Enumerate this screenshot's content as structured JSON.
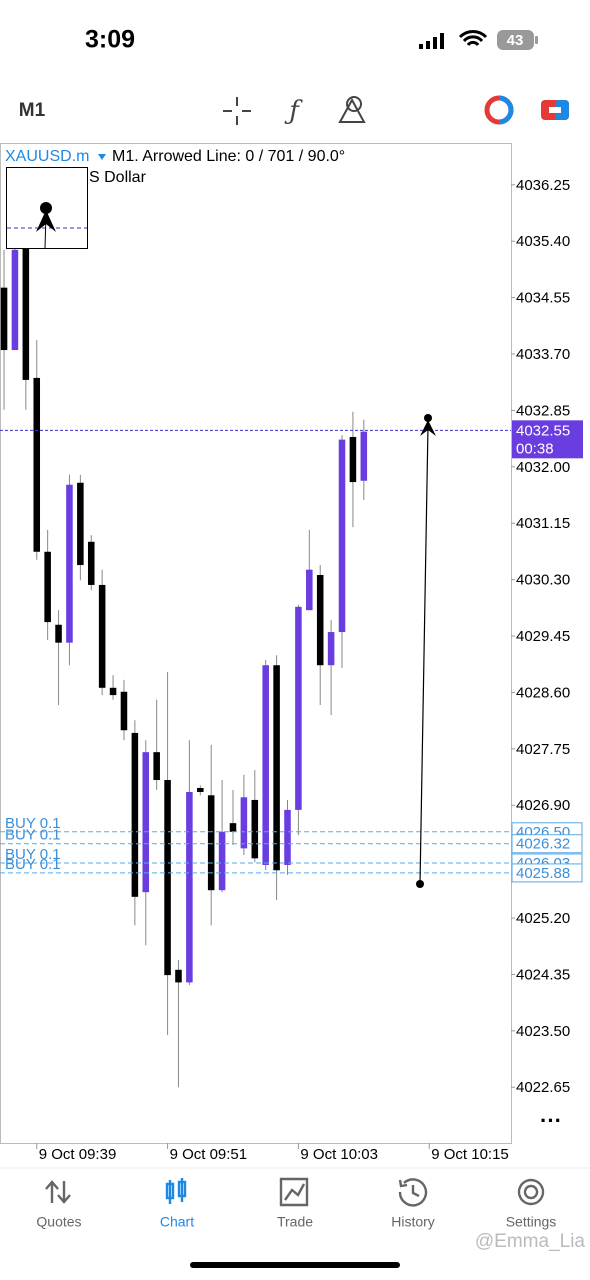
{
  "status_bar": {
    "time": "3:09",
    "battery": "43"
  },
  "toolbar": {
    "timeframe": "M1"
  },
  "chart_header": {
    "symbol": "XAUUSD.m",
    "info": "M1. Arrowed Line: 0 / 701 / 90.0°",
    "currency": "S Dollar"
  },
  "chart_data": {
    "type": "candlestick",
    "up_color": "#6a3de0",
    "down_color": "#000000",
    "ylim": [
      4021.81,
      4036.88
    ],
    "yticks": [
      4036.25,
      {
        "value": 4035.4,
        "label": "4035.40"
      },
      4034.55,
      {
        "value": 4033.7,
        "label": "4033.70"
      },
      4032.85,
      {
        "value": 4032,
        "label": "4032.00"
      },
      4031.15,
      {
        "value": 4030.3,
        "label": "4030.30"
      },
      4029.45,
      {
        "value": 4028.6,
        "label": "4028.60"
      },
      4027.75,
      {
        "value": 4026.9,
        "label": "4026.90"
      },
      {
        "value": 4025.2,
        "label": "4025.20"
      },
      4024.35,
      {
        "value": 4023.5,
        "label": "4023.50"
      },
      4022.65
    ],
    "xlim": [
      -0.37,
      46.5
    ],
    "xticks": [
      {
        "value": 3,
        "label": "9 Oct 09:39"
      },
      {
        "value": 15,
        "label": "9 Oct 09:51"
      },
      {
        "value": 27,
        "label": "9 Oct 10:03"
      },
      {
        "value": 39,
        "label": "9 Oct 10:15"
      }
    ],
    "candles": [
      {
        "open": 4034.7,
        "high": 4035.27,
        "low": 4032.86,
        "close": 4033.76
      },
      {
        "open": 4033.76,
        "high": 4035.35,
        "low": 4033.76,
        "close": 4035.27
      },
      {
        "open": 4035.35,
        "high": 4035.42,
        "low": 4032.86,
        "close": 4033.31
      },
      {
        "open": 4033.34,
        "high": 4033.91,
        "low": 4030.6,
        "close": 4030.72
      },
      {
        "open": 4030.72,
        "high": 4031.05,
        "low": 4029.39,
        "close": 4029.66
      },
      {
        "open": 4029.62,
        "high": 4029.84,
        "low": 4028.41,
        "close": 4029.35
      },
      {
        "open": 4029.35,
        "high": 4031.88,
        "low": 4029.01,
        "close": 4031.73
      },
      {
        "open": 4031.76,
        "high": 4031.88,
        "low": 4030.29,
        "close": 4030.52
      },
      {
        "open": 4030.87,
        "high": 4030.97,
        "low": 4030.14,
        "close": 4030.22
      },
      {
        "open": 4030.22,
        "high": 4030.45,
        "low": 4028.56,
        "close": 4028.67
      },
      {
        "open": 4028.67,
        "high": 4028.86,
        "low": 4028.49,
        "close": 4028.56
      },
      {
        "open": 4028.61,
        "high": 4028.79,
        "low": 4027.88,
        "close": 4028.03
      },
      {
        "open": 4027.99,
        "high": 4028.18,
        "low": 4025.09,
        "close": 4025.52
      },
      {
        "open": 4025.59,
        "high": 4027.88,
        "low": 4024.79,
        "close": 4027.7
      },
      {
        "open": 4027.7,
        "high": 4028.49,
        "low": 4027.13,
        "close": 4027.28
      },
      {
        "open": 4027.28,
        "high": 4028.91,
        "low": 4023.44,
        "close": 4024.34
      },
      {
        "open": 4024.42,
        "high": 4024.57,
        "low": 4022.65,
        "close": 4024.23
      },
      {
        "open": 4024.23,
        "high": 4027.88,
        "low": 4024.19,
        "close": 4027.1
      },
      {
        "open": 4027.16,
        "high": 4027.2,
        "low": 4027.05,
        "close": 4027.1
      },
      {
        "open": 4027.05,
        "high": 4027.81,
        "low": 4025.09,
        "close": 4025.62
      },
      {
        "open": 4025.62,
        "high": 4027.28,
        "low": 4025.59,
        "close": 4026.5
      },
      {
        "open": 4026.63,
        "high": 4027.13,
        "low": 4026.3,
        "close": 4026.5
      },
      {
        "open": 4026.25,
        "high": 4027.36,
        "low": 4026.15,
        "close": 4027.02
      },
      {
        "open": 4026.98,
        "high": 4027.43,
        "low": 4026.04,
        "close": 4026.1
      },
      {
        "open": 4026.0,
        "high": 4029.09,
        "low": 4025.92,
        "close": 4029.01
      },
      {
        "open": 4029.01,
        "high": 4029.16,
        "low": 4025.47,
        "close": 4025.92
      },
      {
        "open": 4026.0,
        "high": 4026.98,
        "low": 4025.85,
        "close": 4026.83
      },
      {
        "open": 4026.83,
        "high": 4029.92,
        "low": 4026.45,
        "close": 4029.89
      },
      {
        "open": 4029.84,
        "high": 4031.05,
        "low": 4029.84,
        "close": 4030.45
      },
      {
        "open": 4030.37,
        "high": 4030.52,
        "low": 4028.41,
        "close": 4029.01
      },
      {
        "open": 4029.01,
        "high": 4029.69,
        "low": 4028.26,
        "close": 4029.51
      },
      {
        "open": 4029.51,
        "high": 4032.48,
        "low": 4028.97,
        "close": 4032.41
      },
      {
        "open": 4032.45,
        "high": 4032.83,
        "low": 4031.09,
        "close": 4031.77
      },
      {
        "open": 4031.79,
        "high": 4032.71,
        "low": 4031.5,
        "close": 4032.53
      }
    ],
    "last_price": 4032.55,
    "countdown": "00:38",
    "orders": [
      {
        "label": "BUY 0.1",
        "price": 4026.5,
        "price_label": "4026.50"
      },
      {
        "label": "BUY 0.1",
        "price": 4026.32,
        "price_label": "4026.32"
      },
      {
        "label": "BUY 0.1",
        "price": 4026.03,
        "price_label": "4026.03"
      },
      {
        "label": "BUY 0.1",
        "price": 4025.88,
        "price_label": "4025.88"
      }
    ]
  },
  "tab_bar": {
    "tabs": [
      "Quotes",
      "Chart",
      "Trade",
      "History",
      "Settings"
    ],
    "active": 1
  },
  "watermark": "@Emma_Lia"
}
